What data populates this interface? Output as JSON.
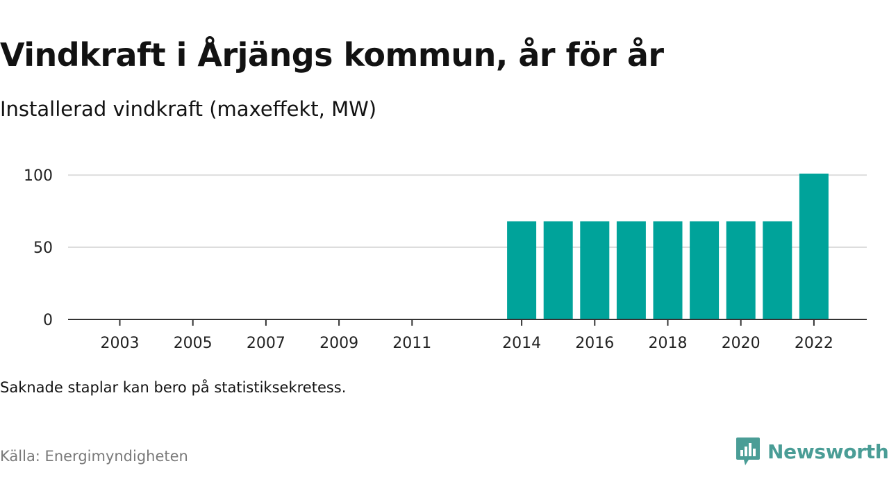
{
  "title": "Vindkraft i Årjängs kommun, år för år",
  "subtitle": "Installerad vindkraft (maxeffekt, MW)",
  "note": "Saknade staplar kan bero på statistiksekretess.",
  "source": "Källa: Energimyndigheten",
  "logo": {
    "text": "Newsworthy",
    "icon": "newsworthy-logo-icon",
    "color": "#4a9d96"
  },
  "colors": {
    "bar": "#00a39a",
    "grid": "#dddddd",
    "axis": "#333333"
  },
  "chart_data": {
    "type": "bar",
    "categories": [
      "2003",
      "2004",
      "2005",
      "2006",
      "2007",
      "2008",
      "2009",
      "2010",
      "2011",
      "2012",
      "2013",
      "2014",
      "2015",
      "2016",
      "2017",
      "2018",
      "2019",
      "2020",
      "2021",
      "2022"
    ],
    "values": [
      null,
      null,
      null,
      null,
      null,
      null,
      null,
      null,
      null,
      null,
      null,
      68,
      68,
      68,
      68,
      68,
      68,
      68,
      68,
      101
    ],
    "xtick_labels": [
      "2003",
      "2005",
      "2007",
      "2009",
      "2011",
      "2014",
      "2016",
      "2018",
      "2020",
      "2022"
    ],
    "yticks": [
      0,
      50,
      100
    ],
    "ylim": [
      0,
      101
    ],
    "grid": true,
    "title": "Vindkraft i Årjängs kommun, år för år",
    "xlabel": "",
    "ylabel": ""
  }
}
